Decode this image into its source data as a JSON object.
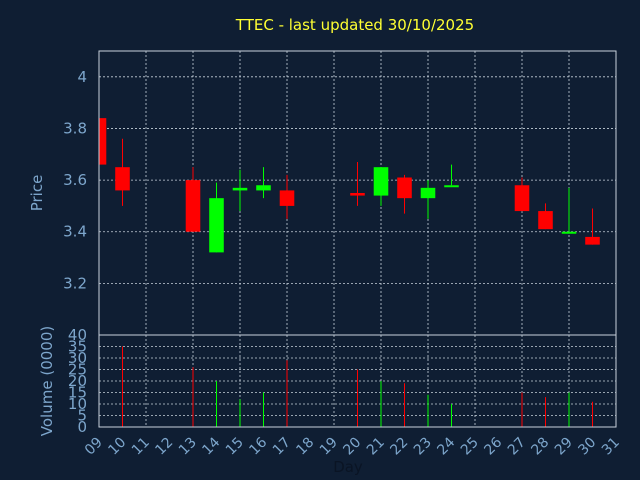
{
  "chart_data": {
    "type": "candlestick",
    "title": "TTEC - last updated 30/10/2025",
    "xlabel": "Day",
    "price_ylabel": "Price",
    "volume_ylabel": "Volume (0000)",
    "price_ylim": [
      3.0,
      4.1
    ],
    "price_ticks": [
      "3.2",
      "3.4",
      "3.6",
      "3.8",
      "4"
    ],
    "volume_ylim": [
      0,
      40
    ],
    "volume_ticks": [
      "0",
      "5",
      "10",
      "15",
      "20",
      "25",
      "30",
      "35",
      "40"
    ],
    "x_ticks": [
      "09",
      "10",
      "11",
      "12",
      "13",
      "14",
      "15",
      "16",
      "17",
      "18",
      "19",
      "20",
      "21",
      "22",
      "23",
      "24",
      "25",
      "26",
      "27",
      "28",
      "29",
      "30",
      "31"
    ],
    "grid": true,
    "colors": {
      "up": "#00ff00",
      "down": "#ff0000",
      "background": "#0f1e33",
      "title": "#ffff33",
      "axis_text": "#7da6cc"
    },
    "candles": [
      {
        "day": 9,
        "open": 3.84,
        "high": 3.84,
        "low": 3.66,
        "close": 3.66,
        "volume": 0
      },
      {
        "day": 10,
        "open": 3.65,
        "high": 3.76,
        "low": 3.5,
        "close": 3.56,
        "volume": 35
      },
      {
        "day": 13,
        "open": 3.6,
        "high": 3.65,
        "low": 3.4,
        "close": 3.4,
        "volume": 26
      },
      {
        "day": 14,
        "open": 3.32,
        "high": 3.59,
        "low": 3.32,
        "close": 3.53,
        "volume": 20
      },
      {
        "day": 15,
        "open": 3.56,
        "high": 3.64,
        "low": 3.48,
        "close": 3.57,
        "volume": 12
      },
      {
        "day": 16,
        "open": 3.56,
        "high": 3.65,
        "low": 3.53,
        "close": 3.58,
        "volume": 15
      },
      {
        "day": 17,
        "open": 3.56,
        "high": 3.62,
        "low": 3.45,
        "close": 3.5,
        "volume": 29
      },
      {
        "day": 20,
        "open": 3.55,
        "high": 3.67,
        "low": 3.5,
        "close": 3.54,
        "volume": 25
      },
      {
        "day": 21,
        "open": 3.54,
        "high": 3.65,
        "low": 3.5,
        "close": 3.65,
        "volume": 20
      },
      {
        "day": 22,
        "open": 3.61,
        "high": 3.62,
        "low": 3.47,
        "close": 3.53,
        "volume": 19
      },
      {
        "day": 23,
        "open": 3.53,
        "high": 3.6,
        "low": 3.45,
        "close": 3.57,
        "volume": 14
      },
      {
        "day": 24,
        "open": 3.58,
        "high": 3.66,
        "low": 3.58,
        "close": 3.58,
        "volume": 10
      },
      {
        "day": 27,
        "open": 3.58,
        "high": 3.61,
        "low": 3.48,
        "close": 3.48,
        "volume": 15
      },
      {
        "day": 28,
        "open": 3.48,
        "high": 3.51,
        "low": 3.41,
        "close": 3.41,
        "volume": 13
      },
      {
        "day": 29,
        "open": 3.4,
        "high": 3.57,
        "low": 3.4,
        "close": 3.4,
        "volume": 15
      },
      {
        "day": 30,
        "open": 3.38,
        "high": 3.49,
        "low": 3.35,
        "close": 3.35,
        "volume": 11
      }
    ]
  }
}
